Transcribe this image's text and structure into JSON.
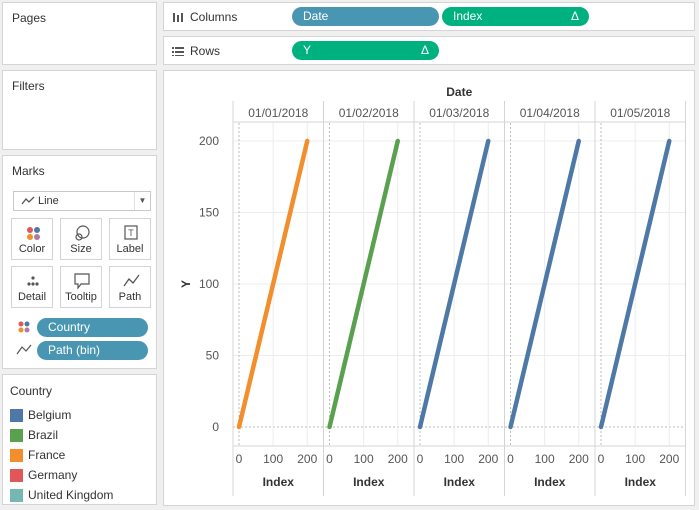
{
  "pages": {
    "title": "Pages"
  },
  "filters": {
    "title": "Filters"
  },
  "marks": {
    "title": "Marks",
    "mark_type": "Line",
    "buttons": [
      {
        "label": "Color",
        "icon": "color-dots-icon"
      },
      {
        "label": "Size",
        "icon": "size-icon"
      },
      {
        "label": "Label",
        "icon": "label-icon"
      },
      {
        "label": "Detail",
        "icon": "detail-icon"
      },
      {
        "label": "Tooltip",
        "icon": "tooltip-icon"
      },
      {
        "label": "Path",
        "icon": "path-icon"
      }
    ],
    "encodings": [
      {
        "label": "Country",
        "icon": "color-dots-icon"
      },
      {
        "label": "Path (bin)",
        "icon": "path-icon"
      }
    ]
  },
  "legend": {
    "title": "Country",
    "items": [
      {
        "label": "Belgium",
        "color": "#4e79a7"
      },
      {
        "label": "Brazil",
        "color": "#59a14f"
      },
      {
        "label": "France",
        "color": "#f28e2b"
      },
      {
        "label": "Germany",
        "color": "#e15759"
      },
      {
        "label": "United Kingdom",
        "color": "#76b7b2"
      }
    ]
  },
  "columns": {
    "label": "Columns",
    "pills": [
      {
        "label": "Date",
        "delta": ""
      },
      {
        "label": "Index",
        "delta": "Δ"
      }
    ]
  },
  "rows": {
    "label": "Rows",
    "pills": [
      {
        "label": "Y",
        "delta": "Δ"
      }
    ]
  },
  "chart_data": {
    "type": "line",
    "header": "Date",
    "panels": [
      "01/01/2018",
      "01/02/2018",
      "01/03/2018",
      "01/04/2018",
      "01/05/2018"
    ],
    "xlabel": "Index",
    "ylabel": "Y",
    "xticks": [
      "0",
      "100",
      "200"
    ],
    "yticks": [
      "0",
      "50",
      "100",
      "150",
      "200"
    ],
    "xlim": [
      0,
      230
    ],
    "ylim": [
      0,
      200
    ],
    "series": [
      {
        "panel": 0,
        "color": "#f28e2b",
        "x": [
          0,
          200
        ],
        "y": [
          0,
          200
        ]
      },
      {
        "panel": 1,
        "color": "#59a14f",
        "x": [
          0,
          200
        ],
        "y": [
          0,
          200
        ]
      },
      {
        "panel": 2,
        "color": "#4e79a7",
        "x": [
          0,
          200
        ],
        "y": [
          0,
          200
        ]
      },
      {
        "panel": 3,
        "color": "#4e79a7",
        "x": [
          0,
          200
        ],
        "y": [
          0,
          200
        ]
      },
      {
        "panel": 4,
        "color": "#4e79a7",
        "x": [
          0,
          200
        ],
        "y": [
          0,
          200
        ]
      }
    ]
  }
}
